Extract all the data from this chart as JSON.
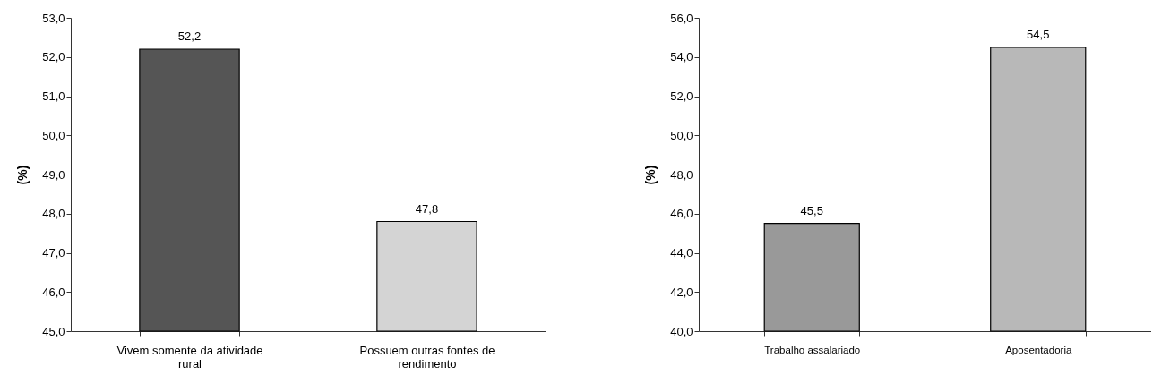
{
  "chart_data": [
    {
      "type": "bar",
      "ylabel": "(%)",
      "categories": [
        "Vivem somente da atividade rural",
        "Possuem outras fontes de rendimento"
      ],
      "values": [
        52.2,
        47.8
      ],
      "colors": [
        "#555555",
        "#d4d4d4"
      ],
      "value_labels": [
        "52,2",
        "47,8"
      ],
      "ylim": [
        45,
        53
      ],
      "yticks": [
        {
          "value": 45,
          "label": "45,0"
        },
        {
          "value": 46,
          "label": "46,0"
        },
        {
          "value": 47,
          "label": "47,0"
        },
        {
          "value": 48,
          "label": "48,0"
        },
        {
          "value": 49,
          "label": "49,0"
        },
        {
          "value": 50,
          "label": "50,0"
        },
        {
          "value": 51,
          "label": "51,0"
        },
        {
          "value": 52,
          "label": "52,0"
        },
        {
          "value": 53,
          "label": "53,0"
        }
      ],
      "grid": false
    },
    {
      "type": "bar",
      "ylabel": "(%)",
      "categories": [
        "Trabalho assalariado",
        "Aposentadoria"
      ],
      "values": [
        45.5,
        54.5
      ],
      "colors": [
        "#999999",
        "#b8b8b8"
      ],
      "value_labels": [
        "45,5",
        "54,5"
      ],
      "ylim": [
        40,
        56
      ],
      "yticks": [
        {
          "value": 40,
          "label": "40,0"
        },
        {
          "value": 42,
          "label": "42,0"
        },
        {
          "value": 44,
          "label": "44,0"
        },
        {
          "value": 46,
          "label": "46,0"
        },
        {
          "value": 48,
          "label": "48,0"
        },
        {
          "value": 50,
          "label": "50,0"
        },
        {
          "value": 52,
          "label": "52,0"
        },
        {
          "value": 54,
          "label": "54,0"
        },
        {
          "value": 56,
          "label": "56,0"
        }
      ],
      "grid": false
    }
  ]
}
